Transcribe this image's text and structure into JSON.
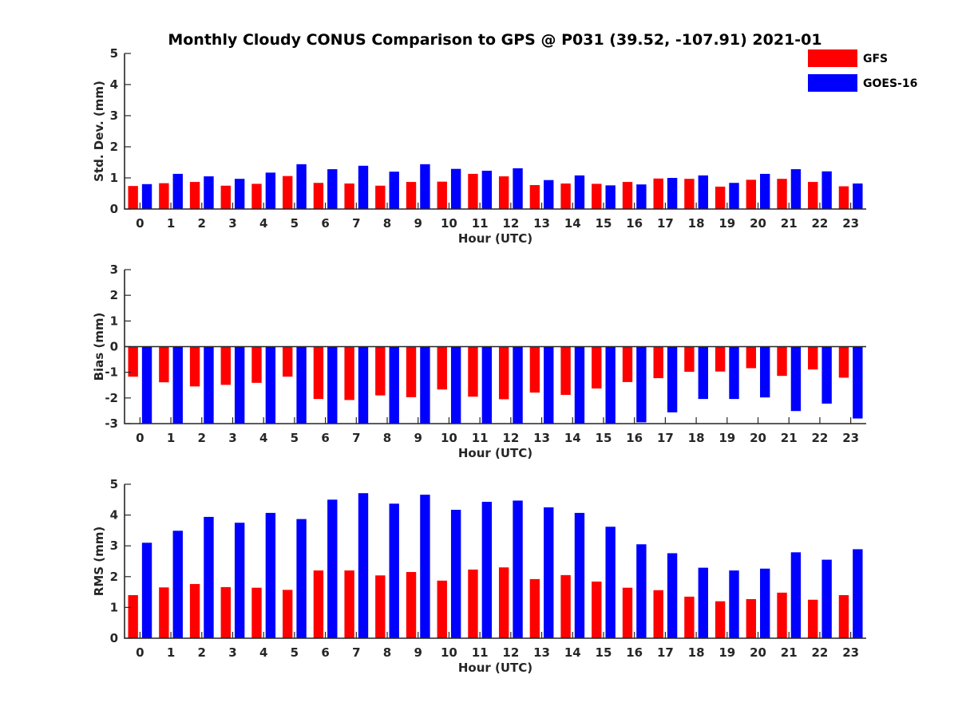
{
  "title": "Monthly Cloudy CONUS Comparison to GPS @ P031 (39.52, -107.91) 2021-01",
  "legend": {
    "placement": "top-right",
    "entries": [
      {
        "name": "GFS",
        "color": "#ff0000"
      },
      {
        "name": "GOES-16",
        "color": "#0000ff"
      }
    ]
  },
  "chart_data": [
    {
      "type": "bar",
      "xlabel": "Hour (UTC)",
      "ylabel": "Std. Dev. (mm)",
      "ylim": [
        0,
        5
      ],
      "yticks": [
        0,
        1,
        2,
        3,
        4,
        5
      ],
      "categories": [
        "0",
        "1",
        "2",
        "3",
        "4",
        "5",
        "6",
        "7",
        "8",
        "9",
        "10",
        "11",
        "12",
        "13",
        "14",
        "15",
        "16",
        "17",
        "18",
        "19",
        "20",
        "21",
        "22",
        "23"
      ],
      "series": [
        {
          "name": "GFS",
          "color": "#ff0000",
          "values": [
            0.74,
            0.83,
            0.87,
            0.75,
            0.81,
            1.06,
            0.84,
            0.82,
            0.75,
            0.87,
            0.88,
            1.13,
            1.05,
            0.77,
            0.82,
            0.81,
            0.87,
            0.98,
            0.97,
            0.72,
            0.94,
            0.97,
            0.87,
            0.73
          ]
        },
        {
          "name": "GOES-16",
          "color": "#0000ff",
          "values": [
            0.8,
            1.13,
            1.05,
            0.97,
            1.17,
            1.44,
            1.28,
            1.39,
            1.2,
            1.44,
            1.29,
            1.23,
            1.31,
            0.93,
            1.08,
            0.76,
            0.79,
            1.0,
            1.08,
            0.84,
            1.13,
            1.28,
            1.21,
            0.82
          ]
        }
      ]
    },
    {
      "type": "bar",
      "xlabel": "Hour (UTC)",
      "ylabel": "Bias (mm)",
      "ylim": [
        -3,
        3
      ],
      "yticks": [
        -3,
        -2,
        -1,
        0,
        1,
        2,
        3
      ],
      "zero_line": true,
      "categories": [
        "0",
        "1",
        "2",
        "3",
        "4",
        "5",
        "6",
        "7",
        "8",
        "9",
        "10",
        "11",
        "12",
        "13",
        "14",
        "15",
        "16",
        "17",
        "18",
        "19",
        "20",
        "21",
        "22",
        "23"
      ],
      "series": [
        {
          "name": "GFS",
          "color": "#ff0000",
          "values": [
            -1.17,
            -1.39,
            -1.55,
            -1.49,
            -1.41,
            -1.17,
            -2.04,
            -2.08,
            -1.9,
            -1.97,
            -1.67,
            -1.95,
            -2.05,
            -1.79,
            -1.88,
            -1.63,
            -1.38,
            -1.23,
            -0.98,
            -0.97,
            -0.84,
            -1.14,
            -0.89,
            -1.21
          ]
        },
        {
          "name": "GOES-16",
          "color": "#0000ff",
          "values": [
            -3.0,
            -3.0,
            -3.0,
            -3.0,
            -3.0,
            -3.0,
            -3.0,
            -3.0,
            -3.0,
            -3.0,
            -3.0,
            -3.0,
            -3.0,
            -3.0,
            -3.0,
            -3.0,
            -2.95,
            -2.56,
            -2.04,
            -2.04,
            -1.98,
            -2.51,
            -2.22,
            -2.8
          ]
        }
      ]
    },
    {
      "type": "bar",
      "xlabel": "Hour (UTC)",
      "ylabel": "RMS (mm)",
      "ylim": [
        0,
        5
      ],
      "yticks": [
        0,
        1,
        2,
        3,
        4,
        5
      ],
      "categories": [
        "0",
        "1",
        "2",
        "3",
        "4",
        "5",
        "6",
        "7",
        "8",
        "9",
        "10",
        "11",
        "12",
        "13",
        "14",
        "15",
        "16",
        "17",
        "18",
        "19",
        "20",
        "21",
        "22",
        "23"
      ],
      "series": [
        {
          "name": "GFS",
          "color": "#ff0000",
          "values": [
            1.4,
            1.65,
            1.76,
            1.66,
            1.64,
            1.57,
            2.2,
            2.2,
            2.04,
            2.15,
            1.87,
            2.23,
            2.3,
            1.92,
            2.05,
            1.84,
            1.64,
            1.56,
            1.35,
            1.2,
            1.27,
            1.48,
            1.25,
            1.4
          ]
        },
        {
          "name": "GOES-16",
          "color": "#0000ff",
          "values": [
            3.1,
            3.49,
            3.94,
            3.75,
            4.07,
            3.87,
            4.5,
            4.71,
            4.37,
            4.66,
            4.17,
            4.43,
            4.47,
            4.25,
            4.07,
            3.62,
            3.05,
            2.76,
            2.29,
            2.2,
            2.26,
            2.79,
            2.55,
            2.89
          ]
        }
      ]
    }
  ]
}
